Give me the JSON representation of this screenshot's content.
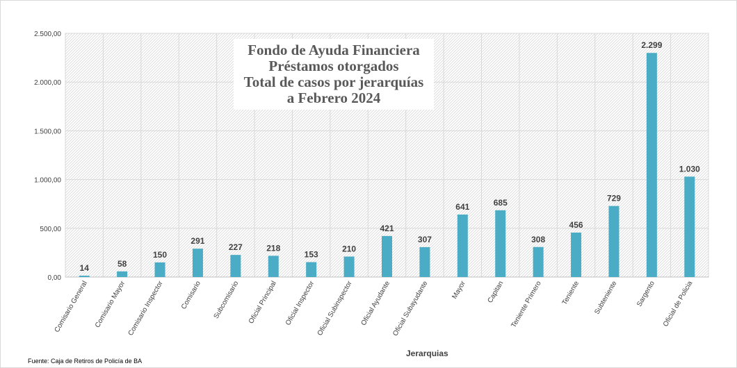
{
  "chart_data": {
    "type": "bar",
    "title_lines": [
      "Fondo de Ayuda Financiera",
      "Préstamos otorgados",
      "Total de casos por jerarquías",
      "a Febrero 2024"
    ],
    "xlabel": "Jerarquias",
    "ylabel": "",
    "ylim": [
      0,
      2500
    ],
    "yticks": [
      0,
      500,
      1000,
      1500,
      2000,
      2500
    ],
    "ytick_labels": [
      "0,00",
      "500,00",
      "1.000,00",
      "1.500,00",
      "2.000,00",
      "2.500,00"
    ],
    "categories": [
      "Comisario General",
      "Comisario Mayor",
      "Comisario Inspector",
      "Comisario",
      "Subcomisario",
      "Oficial Principal",
      "Oficial Inspector",
      "Oficial Subinspector",
      "Oficial Ayudante",
      "Oficial Subayudante",
      "Mayor",
      "Capitan",
      "Teniente Primero",
      "Teniente",
      "Subteniente",
      "Sargento",
      "Oficial de Policia"
    ],
    "values": [
      14,
      58,
      150,
      291,
      227,
      218,
      153,
      210,
      421,
      307,
      641,
      685,
      308,
      456,
      729,
      2299,
      1030
    ],
    "value_labels": [
      "14",
      "58",
      "150",
      "291",
      "227",
      "218",
      "153",
      "210",
      "421",
      "307",
      "641",
      "685",
      "308",
      "456",
      "729",
      "2.299",
      "1.030"
    ],
    "bar_color": "#4BACC6",
    "grid": true,
    "legend": "none",
    "source": "Fuente: Caja de Retiros de Policía de BA"
  }
}
